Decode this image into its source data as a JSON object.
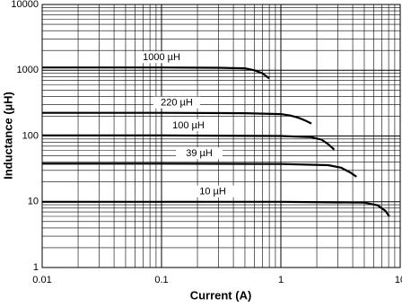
{
  "chart_data": {
    "type": "line",
    "xlabel": "Current (A)",
    "ylabel": "Inductance (µH)",
    "xscale": "log",
    "yscale": "log",
    "grid": true,
    "minor_grid": true,
    "xlim": [
      0.01,
      10
    ],
    "ylim": [
      1,
      10000
    ],
    "xticks": [
      0.01,
      0.1,
      1,
      10
    ],
    "yticks": [
      1,
      10,
      100,
      1000,
      10000
    ],
    "series": [
      {
        "name": "1000 µH",
        "color": "#000000",
        "x": [
          0.01,
          0.1,
          0.3,
          0.5,
          0.6,
          0.7,
          0.8
        ],
        "values": [
          1100,
          1100,
          1090,
          1070,
          1000,
          900,
          750
        ]
      },
      {
        "name": "220 µH",
        "color": "#000000",
        "x": [
          0.01,
          0.1,
          0.5,
          1,
          1.2,
          1.4,
          1.6,
          1.8
        ],
        "values": [
          225,
          225,
          222,
          215,
          205,
          190,
          172,
          155
        ]
      },
      {
        "name": "100 µH",
        "color": "#000000",
        "x": [
          0.01,
          0.1,
          1,
          1.8,
          2.2,
          2.5,
          2.8
        ],
        "values": [
          102,
          102,
          100,
          96,
          88,
          75,
          62
        ]
      },
      {
        "name": "39 µH",
        "color": "#000000",
        "x": [
          0.01,
          0.1,
          1,
          2.5,
          3.2,
          3.8,
          4.3
        ],
        "values": [
          38,
          38,
          37.5,
          36,
          33,
          28,
          24
        ]
      },
      {
        "name": "10 µH",
        "color": "#000000",
        "x": [
          0.01,
          0.1,
          1,
          5,
          6.5,
          7.5,
          8.1
        ],
        "values": [
          10,
          10,
          10,
          9.7,
          8.8,
          7.3,
          6
        ]
      }
    ]
  }
}
